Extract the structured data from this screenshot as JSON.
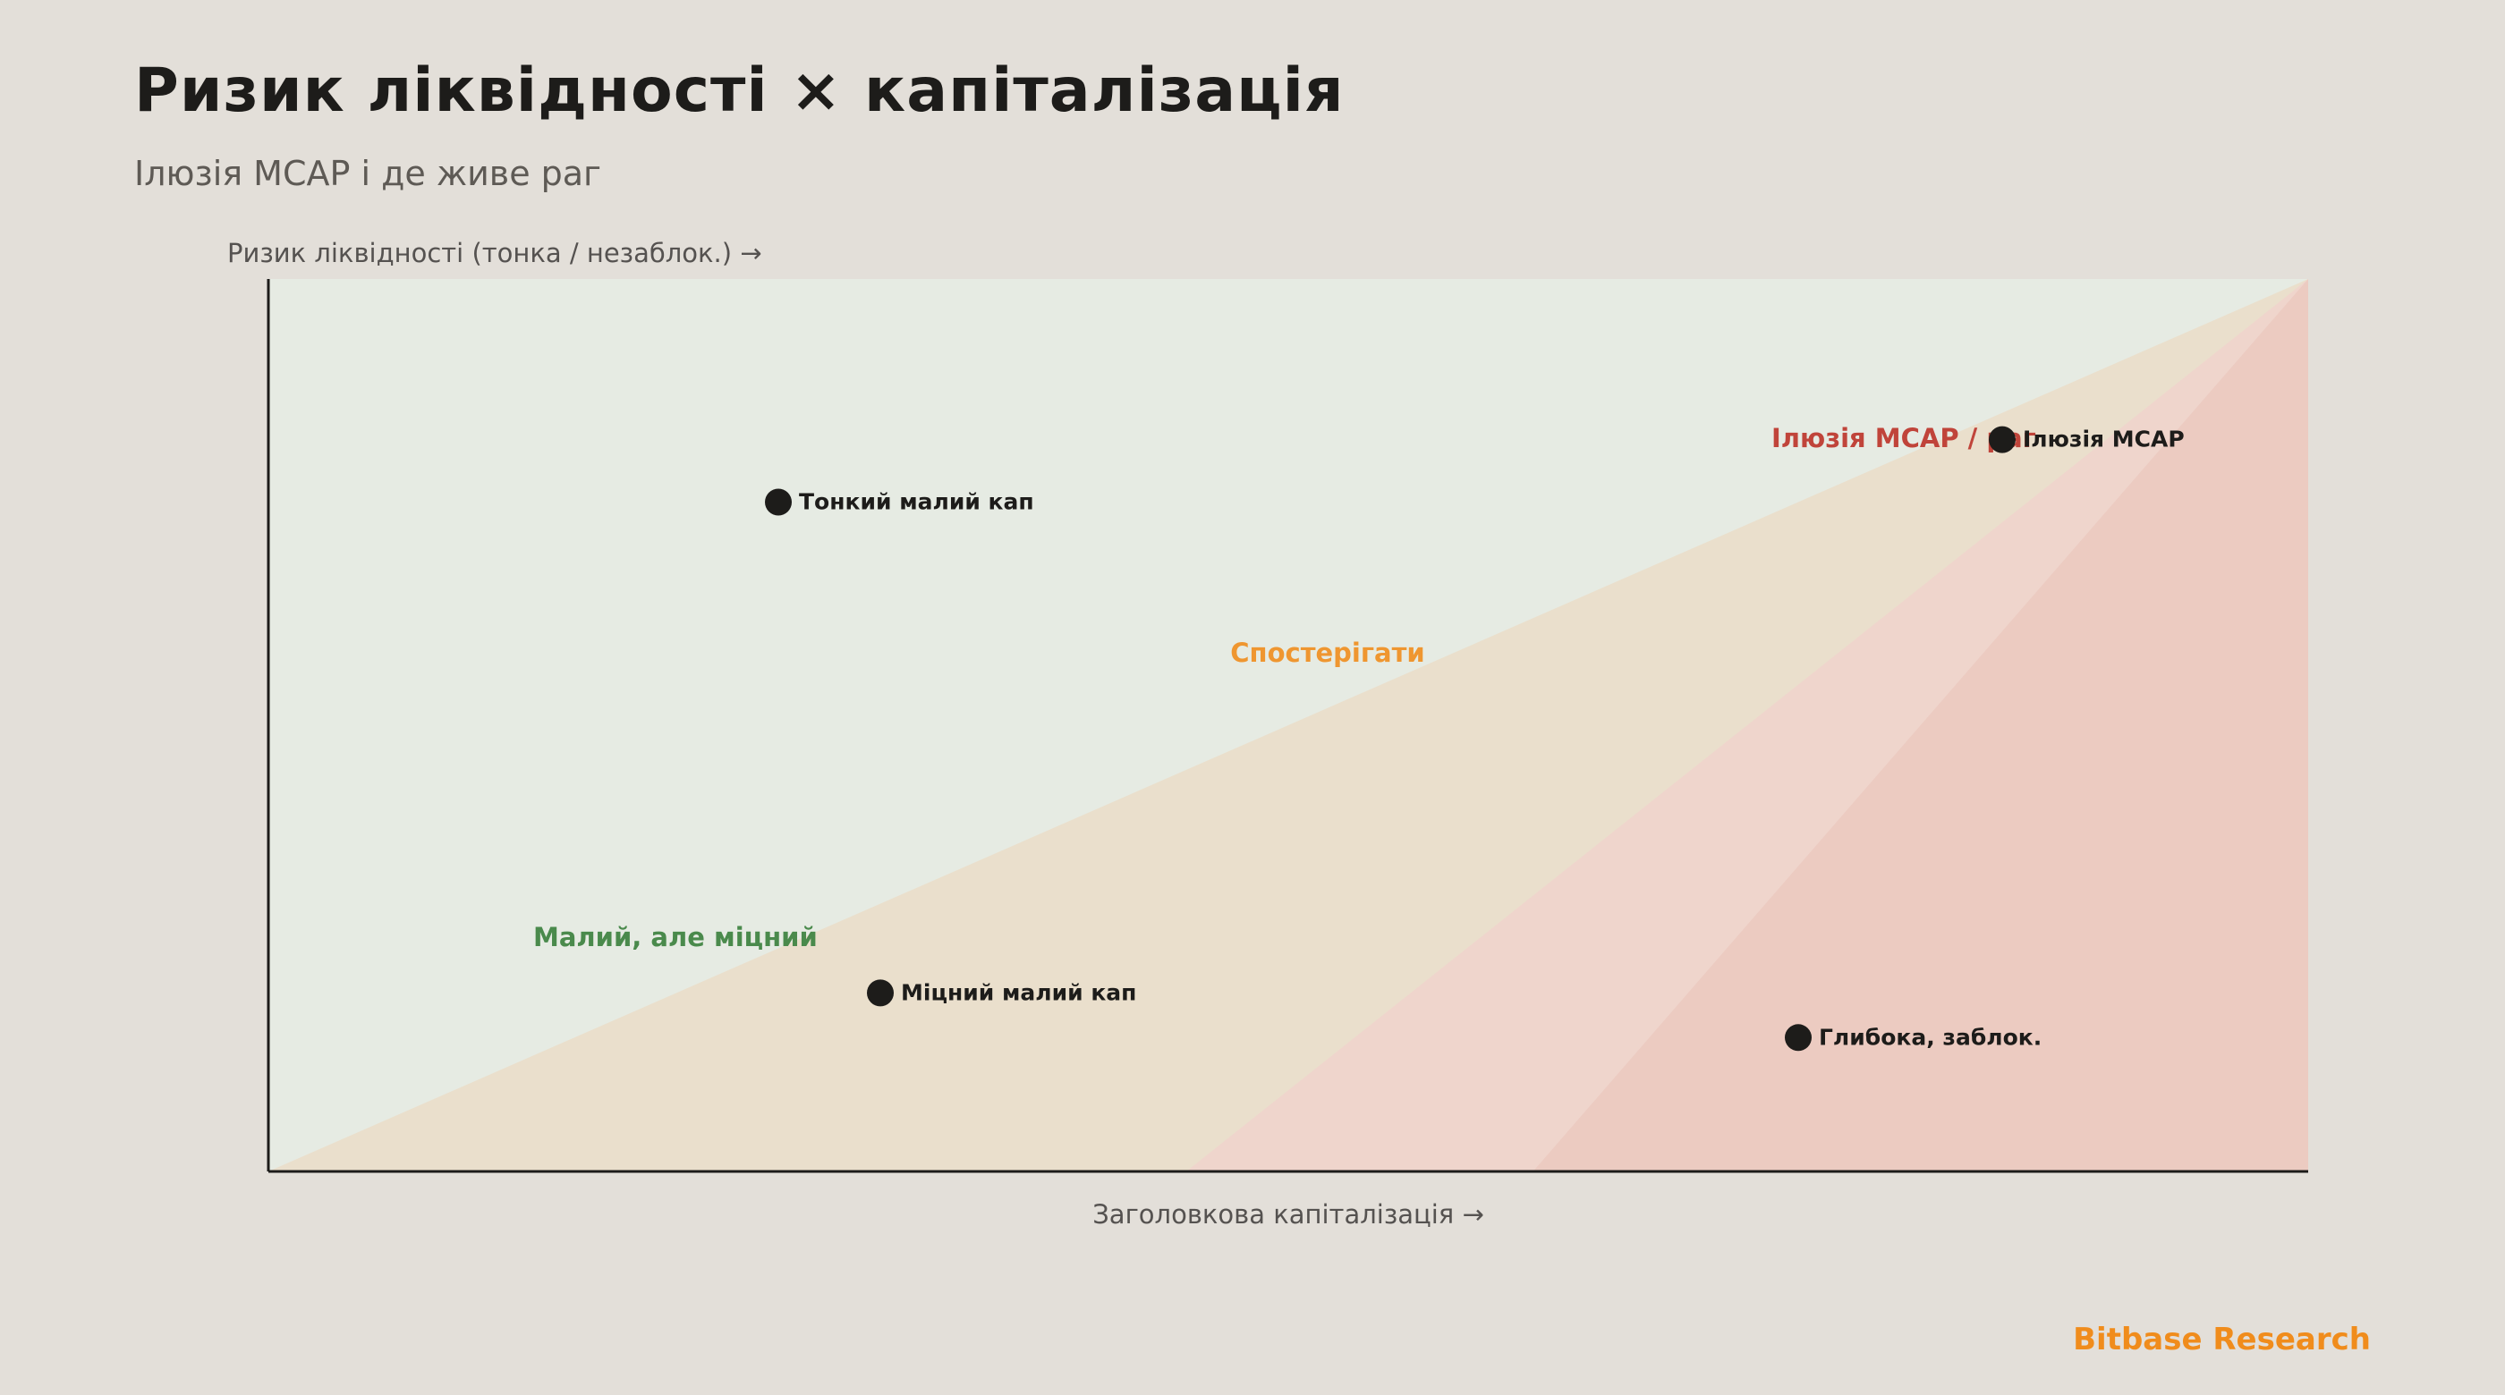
{
  "title": "Ризик ліквідності × капіталізація",
  "subtitle": "Ілюзія MCAP і де живе раг",
  "brand": "Bitbase Research",
  "chart_data": {
    "type": "scatter",
    "xlabel": "Заголовкова капіталізація →",
    "ylabel": "Ризик ліквідності (тонка / незаблок.) →",
    "xlim": [
      0,
      100
    ],
    "ylim": [
      0,
      100
    ],
    "grid": false,
    "zones": [
      {
        "name": "Малий, але міцний",
        "color": "#4a8a4c",
        "fill": "#e6ebe3"
      },
      {
        "name": "Спостерігати",
        "color": "#ef9630",
        "fill": "#eadfcc"
      },
      {
        "name": "Ілюзія MCAP / раг",
        "color": "#c0443a",
        "fill": "#efd5cc"
      }
    ],
    "points": [
      {
        "label": "Тонкий малий кап",
        "x": 25,
        "y": 75
      },
      {
        "label": "Міцний малий кап",
        "x": 30,
        "y": 20
      },
      {
        "label": "Ілюзія MCAP",
        "x": 85,
        "y": 82
      },
      {
        "label": "Глибока, заблок.",
        "x": 75,
        "y": 15
      }
    ],
    "point_color": "#1d1c1a"
  }
}
